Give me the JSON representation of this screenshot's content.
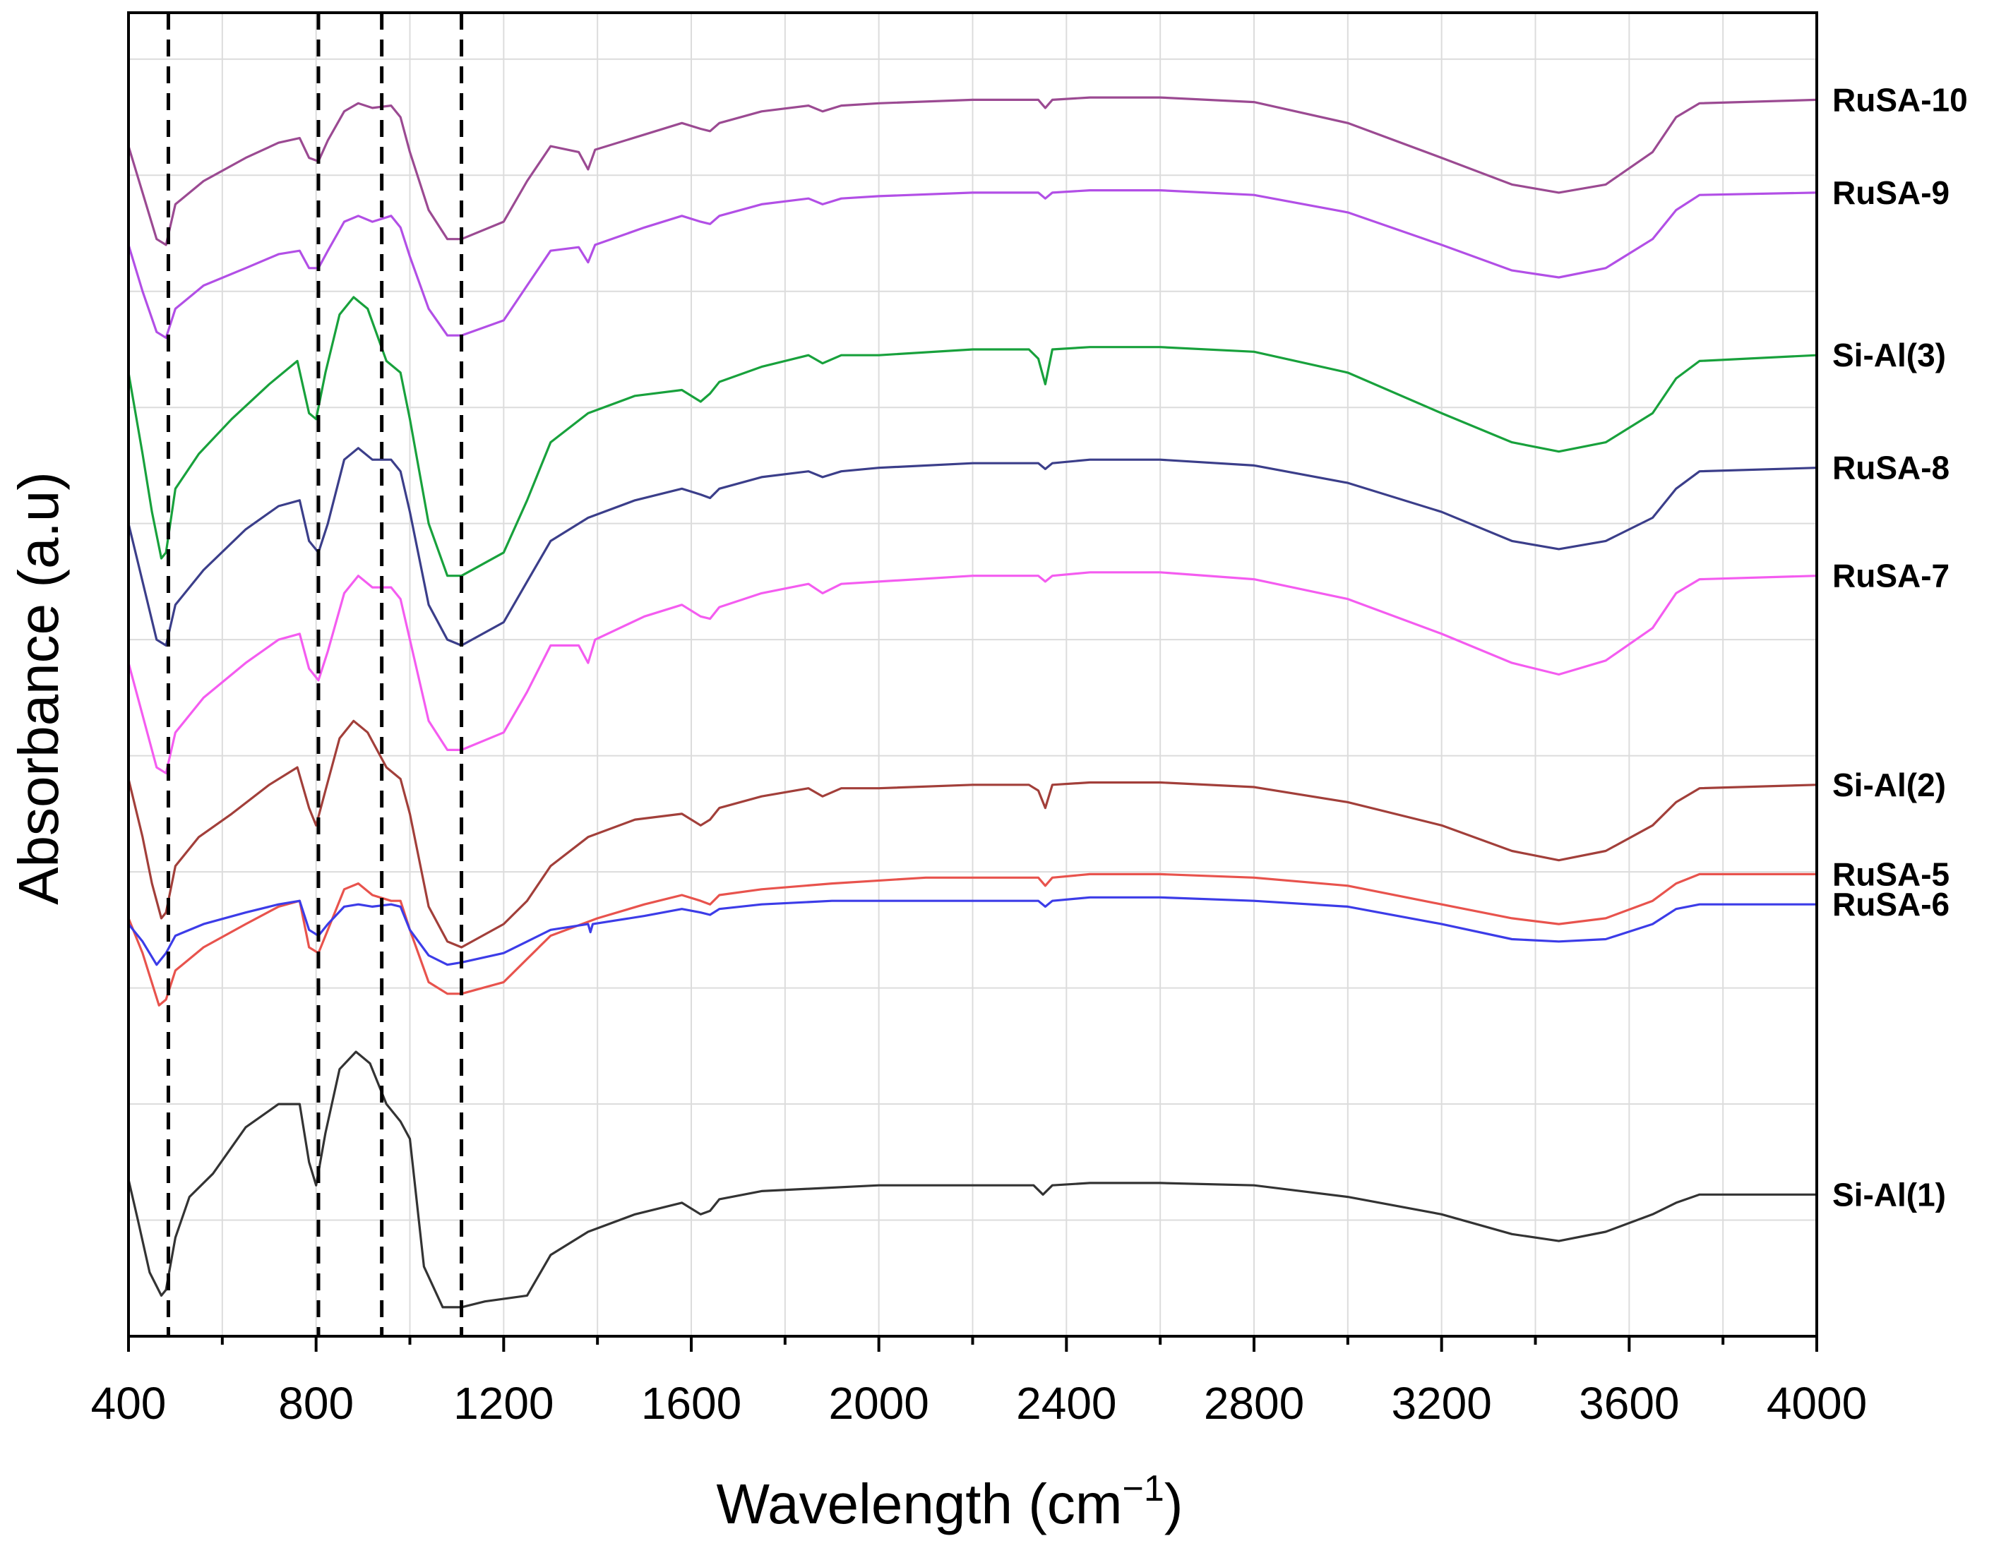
{
  "chart_data": {
    "type": "line",
    "title": "",
    "xlabel": "Wavelength (cm",
    "xlabel_superscript": "−1",
    "xlabel_close": ")",
    "ylabel": "Absorbance (a.u)",
    "xlim": [
      400,
      4000
    ],
    "ylim": [
      0,
      11.4
    ],
    "x_ticks": [
      400,
      800,
      1200,
      1600,
      2000,
      2400,
      2800,
      3200,
      3600,
      4000
    ],
    "grid": true,
    "y_tick_labels": false,
    "reference_lines": [
      485,
      805,
      940,
      1110
    ],
    "series": [
      {
        "name": "Si-Al(1)",
        "color": "#333333",
        "x": [
          400,
          420,
          445,
          470,
          480,
          500,
          530,
          580,
          650,
          720,
          765,
          785,
          800,
          820,
          850,
          885,
          915,
          950,
          980,
          1000,
          1030,
          1070,
          1110,
          1160,
          1250,
          1300,
          1380,
          1480,
          1580,
          1620,
          1640,
          1660,
          1750,
          1850,
          2000,
          2200,
          2330,
          2350,
          2370,
          2450,
          2600,
          2800,
          3000,
          3200,
          3350,
          3450,
          3550,
          3650,
          3700,
          3750,
          4000
        ],
        "y": [
          1.35,
          1.0,
          0.55,
          0.35,
          0.4,
          0.85,
          1.2,
          1.4,
          1.8,
          2.0,
          2.0,
          1.5,
          1.3,
          1.75,
          2.3,
          2.45,
          2.35,
          2.0,
          1.85,
          1.7,
          0.6,
          0.25,
          0.25,
          0.3,
          0.35,
          0.7,
          0.9,
          1.05,
          1.15,
          1.05,
          1.08,
          1.18,
          1.25,
          1.27,
          1.3,
          1.3,
          1.3,
          1.22,
          1.3,
          1.32,
          1.32,
          1.3,
          1.2,
          1.05,
          0.88,
          0.82,
          0.9,
          1.05,
          1.15,
          1.22,
          1.22
        ]
      },
      {
        "name": "RuSA-5",
        "color": "#e8534d",
        "x": [
          400,
          430,
          465,
          480,
          500,
          560,
          650,
          720,
          765,
          785,
          805,
          825,
          860,
          890,
          920,
          960,
          980,
          1000,
          1040,
          1080,
          1110,
          1200,
          1250,
          1300,
          1400,
          1500,
          1580,
          1620,
          1640,
          1660,
          1750,
          1900,
          2100,
          2300,
          2340,
          2355,
          2370,
          2450,
          2600,
          2800,
          3000,
          3200,
          3350,
          3450,
          3550,
          3650,
          3700,
          3750,
          4000
        ],
        "y": [
          3.6,
          3.3,
          2.85,
          2.9,
          3.15,
          3.35,
          3.55,
          3.7,
          3.75,
          3.35,
          3.3,
          3.5,
          3.85,
          3.9,
          3.8,
          3.75,
          3.75,
          3.5,
          3.05,
          2.95,
          2.95,
          3.05,
          3.25,
          3.45,
          3.6,
          3.72,
          3.8,
          3.75,
          3.72,
          3.8,
          3.85,
          3.9,
          3.95,
          3.95,
          3.95,
          3.88,
          3.95,
          3.98,
          3.98,
          3.95,
          3.88,
          3.72,
          3.6,
          3.55,
          3.6,
          3.75,
          3.9,
          3.98,
          3.98
        ]
      },
      {
        "name": "RuSA-6",
        "color": "#3c3ce8",
        "x": [
          400,
          430,
          460,
          480,
          500,
          560,
          650,
          720,
          765,
          785,
          805,
          825,
          860,
          890,
          920,
          960,
          980,
          1000,
          1040,
          1080,
          1110,
          1200,
          1250,
          1300,
          1380,
          1385,
          1390,
          1500,
          1580,
          1620,
          1640,
          1660,
          1750,
          1900,
          2100,
          2300,
          2340,
          2355,
          2370,
          2450,
          2600,
          2800,
          3000,
          3200,
          3350,
          3450,
          3550,
          3650,
          3700,
          3750,
          4000
        ],
        "y": [
          3.55,
          3.4,
          3.2,
          3.3,
          3.45,
          3.55,
          3.65,
          3.72,
          3.75,
          3.5,
          3.45,
          3.55,
          3.7,
          3.72,
          3.7,
          3.72,
          3.7,
          3.5,
          3.28,
          3.2,
          3.22,
          3.3,
          3.4,
          3.5,
          3.55,
          3.48,
          3.55,
          3.62,
          3.68,
          3.65,
          3.63,
          3.68,
          3.72,
          3.75,
          3.75,
          3.75,
          3.75,
          3.7,
          3.75,
          3.78,
          3.78,
          3.75,
          3.7,
          3.55,
          3.42,
          3.4,
          3.42,
          3.55,
          3.68,
          3.72,
          3.72
        ]
      },
      {
        "name": "Si-Al(2)",
        "color": "#a23f3a",
        "x": [
          400,
          430,
          450,
          470,
          480,
          500,
          550,
          620,
          700,
          760,
          785,
          800,
          820,
          850,
          880,
          910,
          950,
          980,
          1000,
          1040,
          1080,
          1110,
          1200,
          1250,
          1300,
          1380,
          1480,
          1580,
          1620,
          1640,
          1660,
          1750,
          1850,
          1880,
          1920,
          2000,
          2200,
          2320,
          2340,
          2355,
          2370,
          2450,
          2600,
          2800,
          3000,
          3200,
          3350,
          3450,
          3550,
          3650,
          3700,
          3750,
          4000
        ],
        "y": [
          4.8,
          4.3,
          3.9,
          3.6,
          3.65,
          4.05,
          4.3,
          4.5,
          4.75,
          4.9,
          4.55,
          4.4,
          4.7,
          5.15,
          5.3,
          5.2,
          4.9,
          4.8,
          4.5,
          3.7,
          3.4,
          3.35,
          3.55,
          3.75,
          4.05,
          4.3,
          4.45,
          4.5,
          4.4,
          4.45,
          4.55,
          4.65,
          4.72,
          4.65,
          4.72,
          4.72,
          4.75,
          4.75,
          4.7,
          4.55,
          4.75,
          4.77,
          4.77,
          4.73,
          4.6,
          4.4,
          4.18,
          4.1,
          4.18,
          4.4,
          4.6,
          4.72,
          4.75
        ]
      },
      {
        "name": "RuSA-7",
        "color": "#f45cf0",
        "x": [
          400,
          430,
          460,
          480,
          500,
          560,
          650,
          720,
          765,
          785,
          805,
          825,
          860,
          890,
          920,
          960,
          980,
          1000,
          1040,
          1080,
          1110,
          1200,
          1250,
          1300,
          1360,
          1380,
          1395,
          1500,
          1580,
          1620,
          1640,
          1660,
          1750,
          1850,
          1880,
          1920,
          2000,
          2200,
          2340,
          2355,
          2370,
          2450,
          2600,
          2800,
          3000,
          3200,
          3350,
          3450,
          3550,
          3650,
          3700,
          3750,
          4000
        ],
        "y": [
          5.8,
          5.35,
          4.9,
          4.85,
          5.2,
          5.5,
          5.8,
          6.0,
          6.05,
          5.75,
          5.65,
          5.9,
          6.4,
          6.55,
          6.45,
          6.45,
          6.35,
          6.0,
          5.3,
          5.05,
          5.05,
          5.2,
          5.55,
          5.95,
          5.95,
          5.8,
          6.0,
          6.2,
          6.3,
          6.2,
          6.18,
          6.28,
          6.4,
          6.48,
          6.4,
          6.48,
          6.5,
          6.55,
          6.55,
          6.5,
          6.55,
          6.58,
          6.58,
          6.52,
          6.35,
          6.05,
          5.8,
          5.7,
          5.82,
          6.1,
          6.4,
          6.52,
          6.55
        ]
      },
      {
        "name": "RuSA-8",
        "color": "#3b3e8a",
        "x": [
          400,
          430,
          460,
          480,
          500,
          560,
          650,
          720,
          765,
          785,
          805,
          825,
          860,
          890,
          920,
          960,
          980,
          1000,
          1040,
          1080,
          1110,
          1200,
          1250,
          1300,
          1380,
          1480,
          1580,
          1620,
          1640,
          1660,
          1750,
          1850,
          1880,
          1920,
          2000,
          2200,
          2340,
          2355,
          2370,
          2450,
          2600,
          2800,
          3000,
          3200,
          3350,
          3450,
          3550,
          3650,
          3700,
          3750,
          4000
        ],
        "y": [
          7.0,
          6.5,
          6.0,
          5.95,
          6.3,
          6.6,
          6.95,
          7.15,
          7.2,
          6.85,
          6.75,
          7.0,
          7.55,
          7.65,
          7.55,
          7.55,
          7.45,
          7.1,
          6.3,
          6.0,
          5.95,
          6.15,
          6.5,
          6.85,
          7.05,
          7.2,
          7.3,
          7.25,
          7.22,
          7.3,
          7.4,
          7.45,
          7.4,
          7.45,
          7.48,
          7.52,
          7.52,
          7.47,
          7.52,
          7.55,
          7.55,
          7.5,
          7.35,
          7.1,
          6.85,
          6.78,
          6.85,
          7.05,
          7.3,
          7.45,
          7.48
        ]
      },
      {
        "name": "Si-Al(3)",
        "color": "#18a13c",
        "x": [
          400,
          430,
          450,
          470,
          480,
          500,
          550,
          620,
          700,
          760,
          785,
          800,
          820,
          850,
          880,
          910,
          950,
          980,
          1000,
          1040,
          1080,
          1110,
          1200,
          1250,
          1300,
          1380,
          1480,
          1580,
          1620,
          1640,
          1660,
          1750,
          1850,
          1880,
          1920,
          2000,
          2200,
          2320,
          2340,
          2355,
          2370,
          2450,
          2600,
          2800,
          3000,
          3200,
          3350,
          3450,
          3550,
          3650,
          3700,
          3750,
          4000
        ],
        "y": [
          8.3,
          7.6,
          7.1,
          6.7,
          6.75,
          7.3,
          7.6,
          7.9,
          8.2,
          8.4,
          7.95,
          7.9,
          8.3,
          8.8,
          8.95,
          8.85,
          8.4,
          8.3,
          7.9,
          7.0,
          6.55,
          6.55,
          6.75,
          7.2,
          7.7,
          7.95,
          8.1,
          8.15,
          8.05,
          8.12,
          8.22,
          8.35,
          8.45,
          8.38,
          8.45,
          8.45,
          8.5,
          8.5,
          8.42,
          8.2,
          8.5,
          8.52,
          8.52,
          8.48,
          8.3,
          7.95,
          7.7,
          7.62,
          7.7,
          7.95,
          8.25,
          8.4,
          8.45
        ]
      },
      {
        "name": "RuSA-9",
        "color": "#b24fe6",
        "x": [
          400,
          430,
          460,
          480,
          500,
          560,
          650,
          720,
          765,
          785,
          805,
          825,
          860,
          890,
          920,
          960,
          980,
          1000,
          1040,
          1080,
          1110,
          1200,
          1250,
          1300,
          1360,
          1380,
          1395,
          1500,
          1580,
          1620,
          1640,
          1660,
          1750,
          1850,
          1880,
          1920,
          2000,
          2200,
          2340,
          2355,
          2370,
          2450,
          2600,
          2800,
          3000,
          3200,
          3350,
          3450,
          3550,
          3650,
          3700,
          3750,
          4000
        ],
        "y": [
          9.4,
          9.0,
          8.65,
          8.6,
          8.85,
          9.05,
          9.2,
          9.32,
          9.35,
          9.2,
          9.2,
          9.35,
          9.6,
          9.65,
          9.6,
          9.65,
          9.55,
          9.3,
          8.85,
          8.62,
          8.62,
          8.75,
          9.05,
          9.35,
          9.38,
          9.25,
          9.4,
          9.55,
          9.65,
          9.6,
          9.58,
          9.65,
          9.75,
          9.8,
          9.75,
          9.8,
          9.82,
          9.85,
          9.85,
          9.8,
          9.85,
          9.87,
          9.87,
          9.83,
          9.68,
          9.4,
          9.18,
          9.12,
          9.2,
          9.45,
          9.7,
          9.83,
          9.85
        ]
      },
      {
        "name": "RuSA-10",
        "color": "#9b4a92",
        "x": [
          400,
          430,
          460,
          480,
          500,
          560,
          650,
          720,
          765,
          785,
          805,
          825,
          860,
          890,
          920,
          960,
          980,
          1000,
          1040,
          1080,
          1110,
          1200,
          1250,
          1300,
          1360,
          1380,
          1395,
          1500,
          1580,
          1620,
          1640,
          1660,
          1750,
          1850,
          1880,
          1920,
          2000,
          2200,
          2340,
          2355,
          2370,
          2450,
          2600,
          2800,
          3000,
          3200,
          3350,
          3450,
          3550,
          3650,
          3700,
          3750,
          4000
        ],
        "y": [
          10.25,
          9.85,
          9.45,
          9.4,
          9.75,
          9.95,
          10.15,
          10.28,
          10.32,
          10.15,
          10.12,
          10.3,
          10.55,
          10.62,
          10.58,
          10.6,
          10.5,
          10.2,
          9.7,
          9.45,
          9.45,
          9.6,
          9.95,
          10.25,
          10.2,
          10.05,
          10.22,
          10.35,
          10.45,
          10.4,
          10.38,
          10.45,
          10.55,
          10.6,
          10.55,
          10.6,
          10.62,
          10.65,
          10.65,
          10.58,
          10.65,
          10.67,
          10.67,
          10.63,
          10.45,
          10.15,
          9.92,
          9.85,
          9.92,
          10.2,
          10.5,
          10.62,
          10.65
        ]
      }
    ]
  }
}
